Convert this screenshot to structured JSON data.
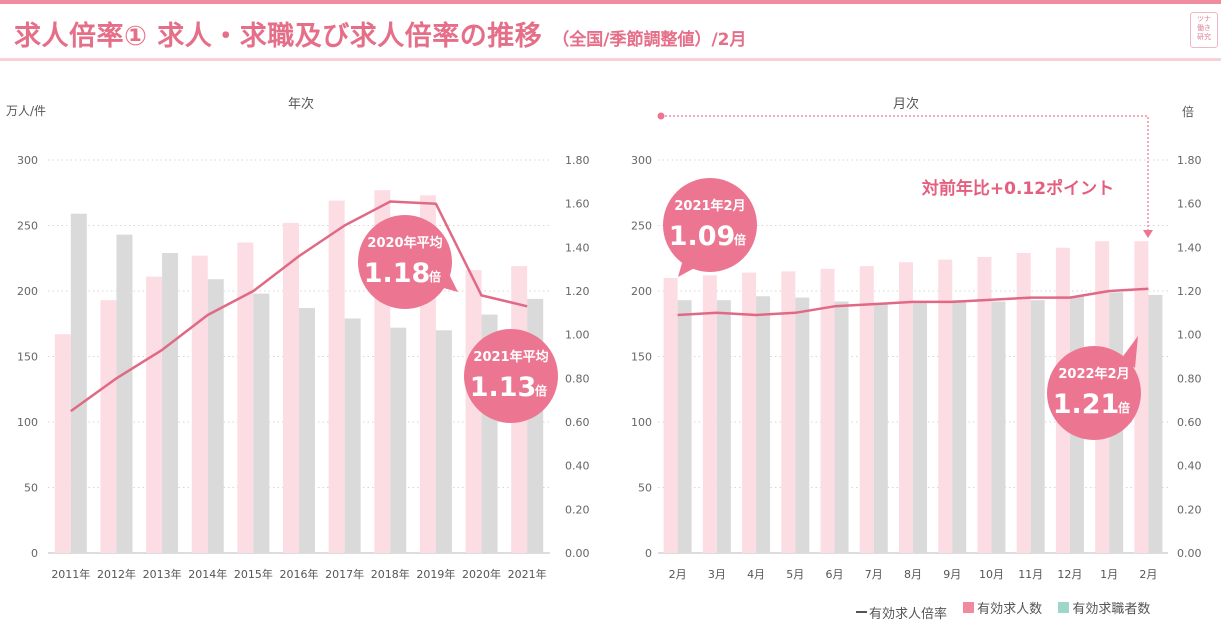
{
  "header": {
    "title": "求人倍率① 求人・求職及び求人倍率の推移",
    "subtitle": "（全国/季節調整値）/2月",
    "logo_lines": [
      "ツナ",
      "働き",
      "研究"
    ]
  },
  "colors": {
    "offers": "#fddde4",
    "seekers": "#dadada",
    "ratio_line": "#e06a85",
    "bubble": "#ec7691",
    "accent_text": "#e55e7e",
    "legend_seekers": "#9fd6cc"
  },
  "legend": {
    "ratio": "有効求人倍率",
    "offers": "有効求人数",
    "seekers": "有効求職者数"
  },
  "chart_data": [
    {
      "type": "bar",
      "title": "年次",
      "ylabel": "万人/件",
      "y2label": "",
      "ylim": [
        0,
        300
      ],
      "y2lim": [
        0,
        1.8
      ],
      "yticks": [
        "0",
        "50",
        "100",
        "150",
        "200",
        "250",
        "300"
      ],
      "y2ticks": [
        "0.00",
        "0.20",
        "0.40",
        "0.60",
        "0.80",
        "1.00",
        "1.20",
        "1.40",
        "1.60",
        "1.80"
      ],
      "categories": [
        "2011年",
        "2012年",
        "2013年",
        "2014年",
        "2015年",
        "2016年",
        "2017年",
        "2018年",
        "2019年",
        "2020年",
        "2021年"
      ],
      "series": [
        {
          "name": "有効求人数",
          "kind": "bar",
          "values": [
            167,
            193,
            211,
            227,
            237,
            252,
            269,
            277,
            273,
            216,
            219
          ]
        },
        {
          "name": "有効求職者数",
          "kind": "bar",
          "values": [
            259,
            243,
            229,
            209,
            198,
            187,
            179,
            172,
            170,
            182,
            194
          ]
        },
        {
          "name": "有効求人倍率",
          "kind": "line",
          "axis": "right",
          "values": [
            0.65,
            0.8,
            0.93,
            1.09,
            1.2,
            1.36,
            1.5,
            1.61,
            1.6,
            1.18,
            1.13
          ]
        }
      ],
      "callouts": [
        {
          "label": "2020年平均",
          "value": "1.18",
          "unit": "倍"
        },
        {
          "label": "2021年平均",
          "value": "1.13",
          "unit": "倍"
        }
      ]
    },
    {
      "type": "bar",
      "title": "月次",
      "ylabel": "",
      "y2label": "倍",
      "ylim": [
        0,
        300
      ],
      "y2lim": [
        0,
        1.8
      ],
      "yticks": [
        "0",
        "50",
        "100",
        "150",
        "200",
        "250",
        "300"
      ],
      "y2ticks": [
        "0.00",
        "0.20",
        "0.40",
        "0.60",
        "0.80",
        "1.00",
        "1.20",
        "1.40",
        "1.60",
        "1.80"
      ],
      "categories": [
        "2月",
        "3月",
        "4月",
        "5月",
        "6月",
        "7月",
        "8月",
        "9月",
        "10月",
        "11月",
        "12月",
        "1月",
        "2月"
      ],
      "series": [
        {
          "name": "有効求人数",
          "kind": "bar",
          "values": [
            210,
            212,
            214,
            215,
            217,
            219,
            222,
            224,
            226,
            229,
            233,
            238,
            238
          ]
        },
        {
          "name": "有効求職者数",
          "kind": "bar",
          "values": [
            193,
            193,
            196,
            195,
            192,
            191,
            192,
            193,
            192,
            193,
            196,
            199,
            197
          ]
        },
        {
          "name": "有効求人倍率",
          "kind": "line",
          "axis": "right",
          "values": [
            1.09,
            1.1,
            1.09,
            1.1,
            1.13,
            1.14,
            1.15,
            1.15,
            1.16,
            1.17,
            1.17,
            1.2,
            1.21
          ]
        }
      ],
      "callouts": [
        {
          "label": "2021年2月",
          "value": "1.09",
          "unit": "倍"
        },
        {
          "label": "2022年2月",
          "value": "1.21",
          "unit": "倍"
        }
      ],
      "annotation": "対前年比+0.12ポイント"
    }
  ]
}
